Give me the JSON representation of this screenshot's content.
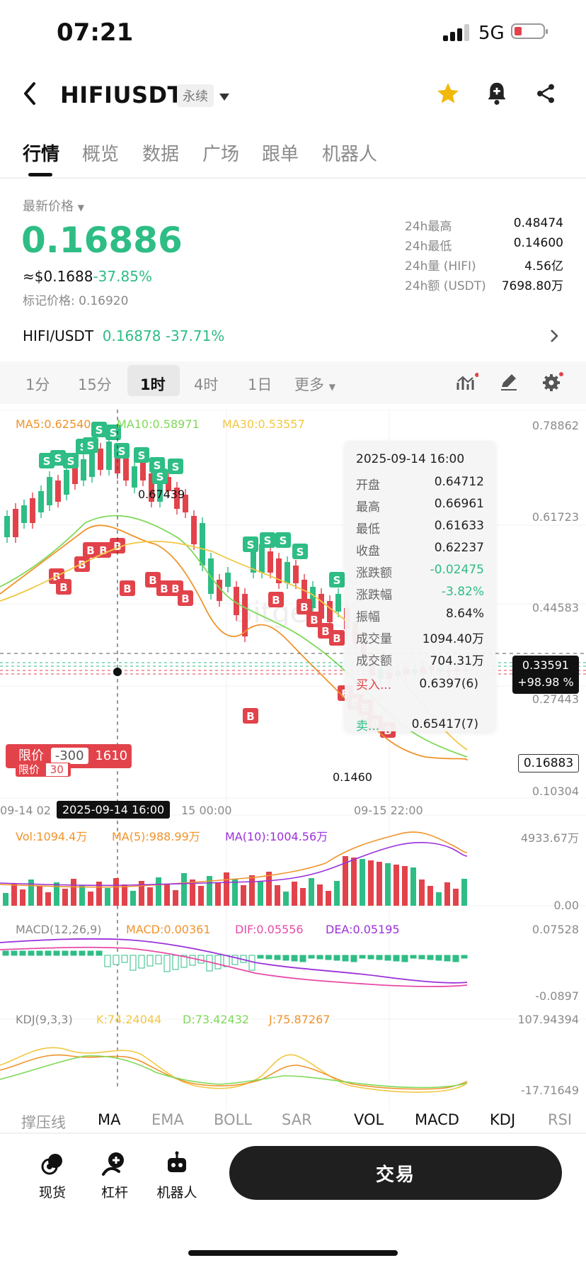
{
  "status": {
    "time": "07:21",
    "network": "5G"
  },
  "header": {
    "title": "HIFIUSDT",
    "badge": "永续"
  },
  "tabs": [
    "行情",
    "概览",
    "数据",
    "广场",
    "跟单",
    "机器人"
  ],
  "price": {
    "label": "最新价格",
    "last": "0.16886",
    "usd": "≈$0.1688",
    "change_pct": "-37.85%",
    "mark_label": "标记价格:",
    "mark": "0.16920"
  },
  "stats": [
    {
      "label": "24h最高",
      "value": "0.48474"
    },
    {
      "label": "24h最低",
      "value": "0.14600"
    },
    {
      "label": "24h量 (HIFI)",
      "value": "4.56亿"
    },
    {
      "label": "24h额 (USDT)",
      "value": "7698.80万"
    }
  ],
  "pair": {
    "name": "HIFI/USDT",
    "price": "0.16878",
    "change": "-37.71%"
  },
  "intervals": {
    "items": [
      "1分",
      "15分",
      "1时",
      "4时",
      "1日",
      "更多"
    ],
    "active": "1时"
  },
  "ma_legend": {
    "ma5": "MA5:0.62540",
    "ma10": "MA10:0.58971",
    "ma30": "MA30:0.53557"
  },
  "price_axis": [
    "0.78862",
    "0.61723",
    "0.44583",
    "0.27443",
    "0.10304"
  ],
  "crosshair": {
    "price": "0.33591",
    "pct": "+98.98 %",
    "time": "2025-09-14 16:00"
  },
  "current_price_tag": "0.16883",
  "high_marker": "0.67439",
  "low_marker": "0.1460",
  "time_axis": [
    "09-14 02",
    "15 00:00",
    "09-15 22:00"
  ],
  "order_tag": {
    "label": "限价",
    "qty": "-300",
    "price": "1610",
    "label2": "限价",
    "qty2": "30"
  },
  "tooltip": {
    "time": "2025-09-14 16:00",
    "rows": [
      {
        "label": "开盘",
        "value": "0.64712"
      },
      {
        "label": "最高",
        "value": "0.66961"
      },
      {
        "label": "最低",
        "value": "0.61633"
      },
      {
        "label": "收盘",
        "value": "0.62237"
      },
      {
        "label": "涨跌额",
        "value": "-0.02475"
      },
      {
        "label": "涨跌幅",
        "value": "-3.82%"
      },
      {
        "label": "振幅",
        "value": "8.64%"
      },
      {
        "label": "成交量",
        "value": "1094.40万"
      },
      {
        "label": "成交额",
        "value": "704.31万"
      }
    ],
    "buy_label": "买入...",
    "buy_value": "0.6397(6)",
    "sell_label": "卖...",
    "sell_value": "0.65417(7)"
  },
  "volume": {
    "vol": "Vol:1094.4万",
    "ma5": "MA(5):988.99万",
    "ma10": "MA(10):1004.56万",
    "max": "4933.67万",
    "zero": "0.00"
  },
  "macd": {
    "name": "MACD(12,26,9)",
    "macd": "MACD:0.00361",
    "dif": "DIF:0.05556",
    "dea": "DEA:0.05195",
    "max": "0.07528",
    "min": "-0.0897"
  },
  "kdj": {
    "name": "KDJ(9,3,3)",
    "k": "K:74.24044",
    "d": "D:73.42432",
    "j": "J:75.87267",
    "max": "107.94394",
    "min": "-17.71649"
  },
  "indicators": [
    "撑压线",
    "MA",
    "EMA",
    "BOLL",
    "SAR",
    "VOL",
    "MACD",
    "KDJ",
    "RSI"
  ],
  "bottom_nav": [
    "现货",
    "杠杆",
    "机器人"
  ],
  "trade_button": "交易",
  "colors": {
    "up": "#2ebd85",
    "down": "#e2434b"
  }
}
